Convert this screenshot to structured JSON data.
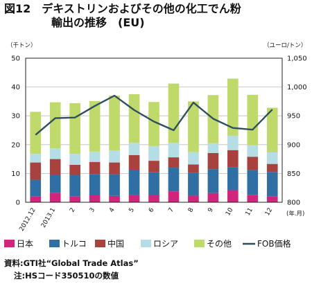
{
  "title": {
    "line1": "図12　デキストリンおよびその他の化工でん粉",
    "line2": "輸出の推移　(EU)"
  },
  "units": {
    "left": "（千トン）",
    "right": "（ユーロ/トン）",
    "x_suffix": "(年.月)"
  },
  "source": {
    "line1": "資料:GTI社“Global Trade Atlas”",
    "line2": "注:HSコード350510の数値"
  },
  "colors": {
    "japan": "#d0257a",
    "turkey": "#2f6fa3",
    "china": "#a8423f",
    "russia": "#b5dde6",
    "other": "#bfd96b",
    "fob": "#2f4f5f"
  },
  "chart_data": {
    "type": "bar",
    "stacked": true,
    "categories": [
      "2012.12",
      "2013.1",
      "2",
      "3",
      "4",
      "5",
      "6",
      "7",
      "8",
      "9",
      "10",
      "11",
      "12"
    ],
    "series": [
      {
        "name": "日本",
        "color": "#d0257a",
        "values": [
          2,
          3.3,
          2,
          2.4,
          2.2,
          2.5,
          2.4,
          3.8,
          2.3,
          3.2,
          4.2,
          2.6,
          2
        ]
      },
      {
        "name": "トルコ",
        "color": "#2f6fa3",
        "values": [
          5.8,
          6.2,
          7.5,
          7.4,
          7.5,
          8.8,
          8,
          8.2,
          8,
          8.3,
          8,
          8.6,
          8.5
        ]
      },
      {
        "name": "中国",
        "color": "#a8423f",
        "values": [
          6,
          5.5,
          3.5,
          4.2,
          4.1,
          5.1,
          4,
          3.6,
          2.8,
          5.6,
          5.9,
          4.6,
          2.8
        ]
      },
      {
        "name": "ロシア",
        "color": "#b5dde6",
        "values": [
          3,
          3.7,
          3.8,
          3.6,
          4.2,
          4.2,
          5.1,
          5,
          4.3,
          3.4,
          5,
          4,
          4
        ]
      },
      {
        "name": "その他",
        "color": "#bfd96b",
        "values": [
          14.6,
          16,
          17.6,
          17.5,
          19,
          16.9,
          15.3,
          20.6,
          17.6,
          16.7,
          19.8,
          17.5,
          15.5
        ]
      }
    ],
    "line": {
      "name": "FOB価格",
      "color": "#2f4f5f",
      "values": [
        917,
        946,
        947,
        967,
        985,
        960,
        940,
        925,
        973,
        945,
        929,
        926,
        961
      ]
    },
    "y_left": {
      "min": 0,
      "max": 50,
      "ticks": [
        0,
        10,
        20,
        30,
        40,
        50
      ],
      "label": "（千トン）"
    },
    "y_right": {
      "min": 800,
      "max": 1050,
      "ticks": [
        800,
        850,
        900,
        950,
        1000,
        1050
      ],
      "label": "（ユーロ/トン）"
    },
    "grid": true,
    "legend_position": "bottom",
    "legend": [
      "日本",
      "トルコ",
      "中国",
      "ロシア",
      "その他",
      "FOB価格"
    ]
  }
}
